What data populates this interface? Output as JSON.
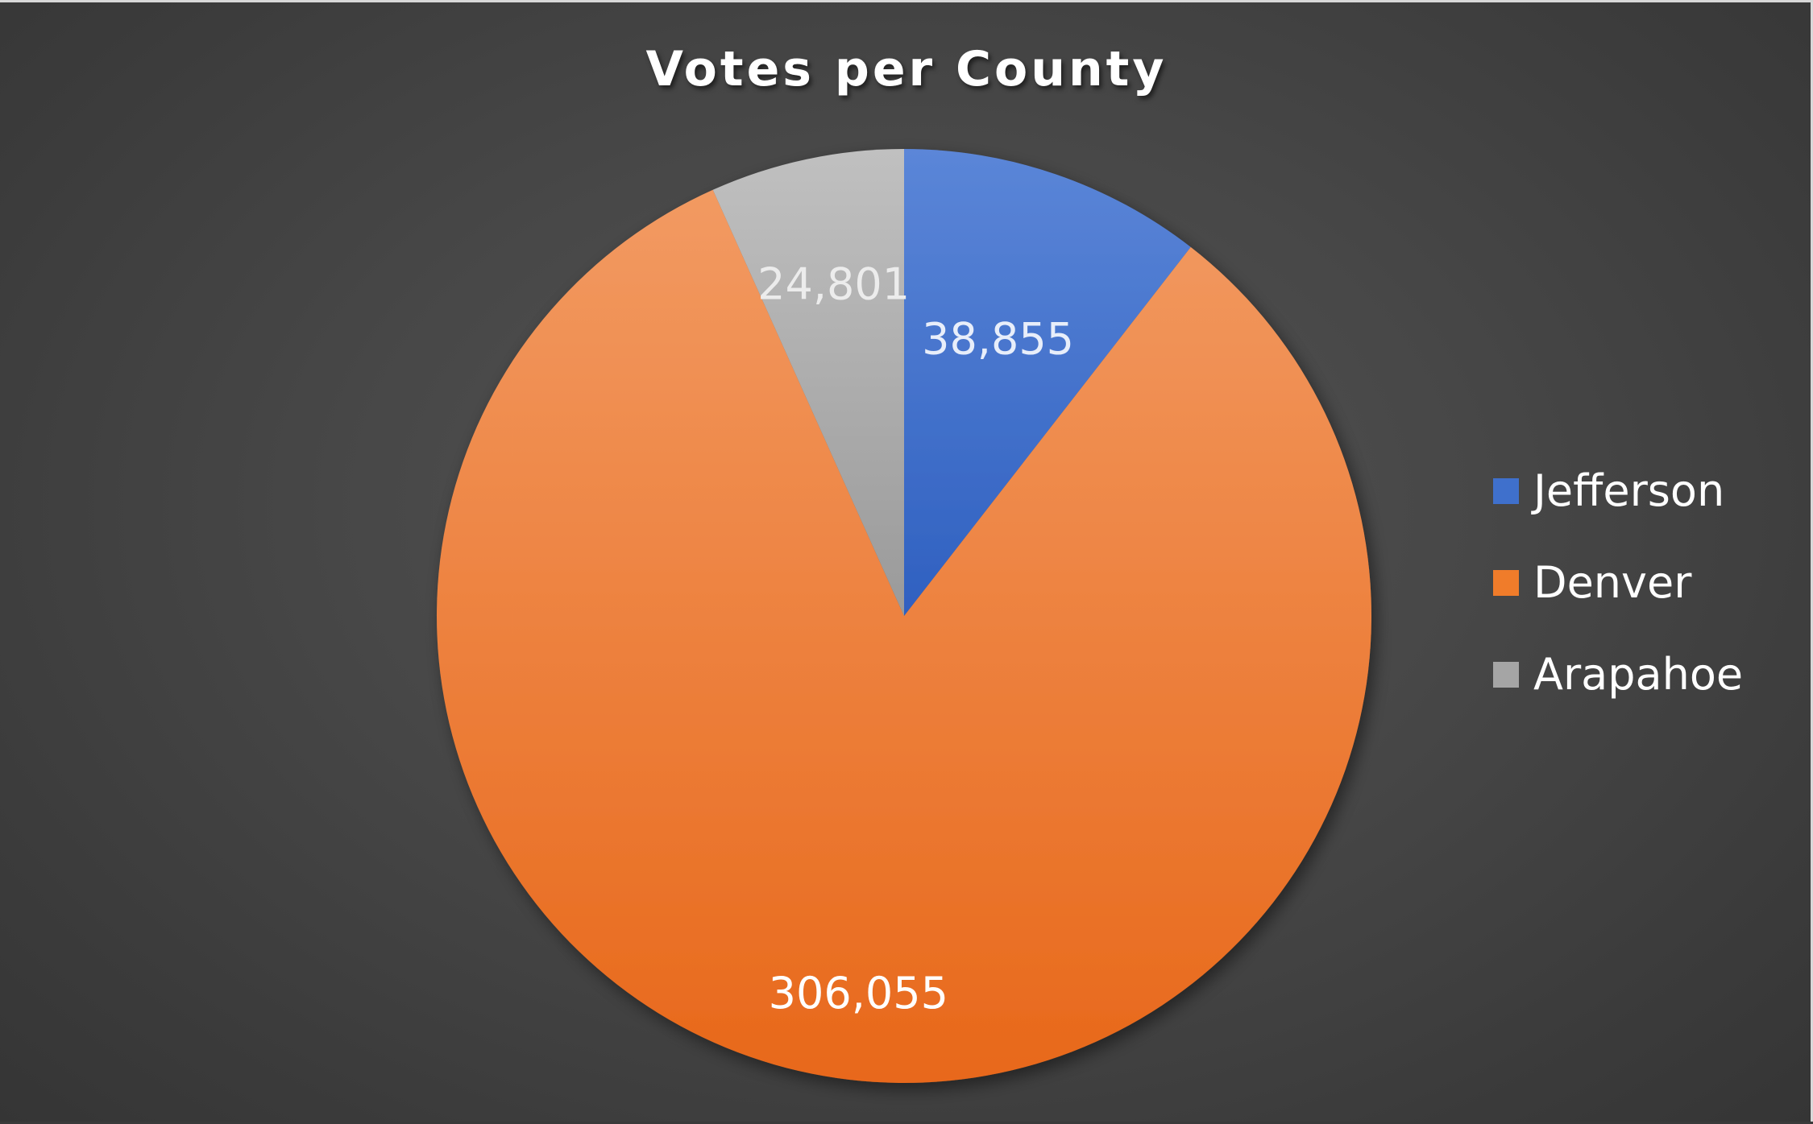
{
  "chart_data": {
    "type": "pie",
    "title": "Votes per County",
    "categories": [
      "Jefferson",
      "Denver",
      "Arapahoe"
    ],
    "values": [
      38855,
      306055,
      24801
    ],
    "value_labels": [
      "38,855",
      "306,055",
      "24,801"
    ],
    "colors": [
      "#3f70cc",
      "#f07c2a",
      "#a5a5a5"
    ],
    "legend_position": "right",
    "start_angle": "top",
    "direction": "clockwise"
  }
}
